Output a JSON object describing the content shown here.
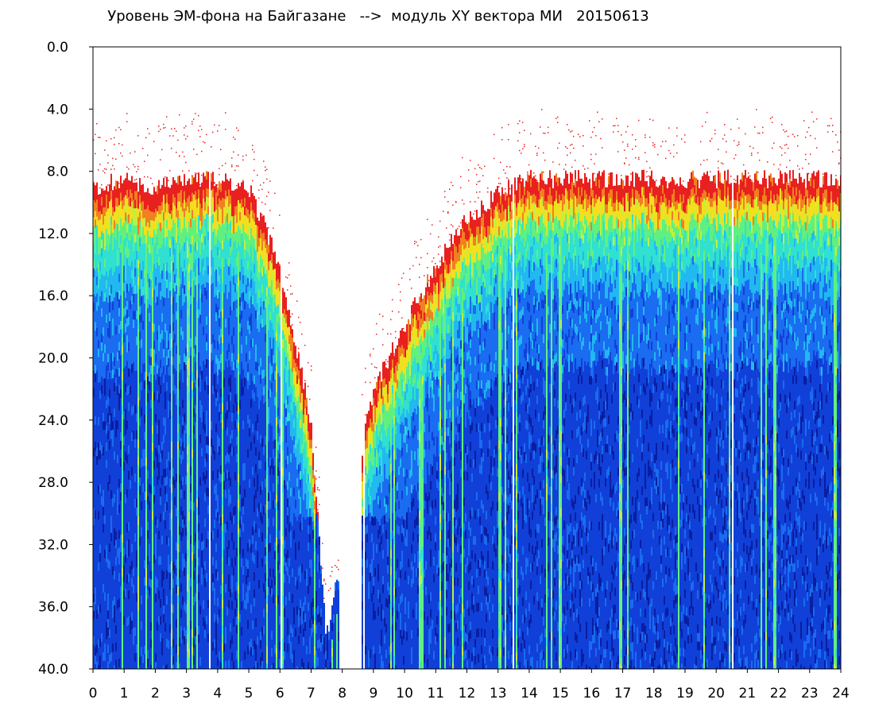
{
  "chart_data": {
    "type": "heatmap",
    "title": "Уровень ЭМ-фона на Байгазане   -->  модуль XY вектора МИ   20150613",
    "xlabel": "",
    "ylabel": "",
    "xlim": [
      0,
      24
    ],
    "ylim": [
      0,
      40
    ],
    "y_inverted": true,
    "x_ticks": [
      "0",
      "1",
      "2",
      "3",
      "4",
      "5",
      "6",
      "7",
      "8",
      "9",
      "10",
      "11",
      "12",
      "13",
      "14",
      "15",
      "16",
      "17",
      "18",
      "19",
      "20",
      "21",
      "22",
      "23",
      "24"
    ],
    "y_ticks": [
      "0.0",
      "4.0",
      "8.0",
      "12.0",
      "16.0",
      "20.0",
      "24.0",
      "28.0",
      "32.0",
      "36.0",
      "40.0"
    ],
    "colormap": [
      "#0a1ea0",
      "#1040d8",
      "#1a6cf0",
      "#22b8f0",
      "#30e0d0",
      "#60f080",
      "#c0f040",
      "#f0e020",
      "#f08020",
      "#e82020"
    ],
    "signal_onset_y_by_hour": [
      {
        "x": 0,
        "y": 9
      },
      {
        "x": 1,
        "y": 8.5
      },
      {
        "x": 2,
        "y": 9
      },
      {
        "x": 3,
        "y": 8.5
      },
      {
        "x": 4,
        "y": 8.5
      },
      {
        "x": 5,
        "y": 9
      },
      {
        "x": 6,
        "y": 14
      },
      {
        "x": 7,
        "y": 24
      },
      {
        "x": 7.5,
        "y": 38
      },
      {
        "x": 9,
        "y": 22
      },
      {
        "x": 10,
        "y": 18
      },
      {
        "x": 11,
        "y": 14
      },
      {
        "x": 12,
        "y": 11
      },
      {
        "x": 13,
        "y": 9.5
      },
      {
        "x": 14,
        "y": 8.5
      },
      {
        "x": 16,
        "y": 8.5
      },
      {
        "x": 18,
        "y": 8.5
      },
      {
        "x": 20,
        "y": 8.5
      },
      {
        "x": 22,
        "y": 8.5
      },
      {
        "x": 24,
        "y": 8.5
      }
    ],
    "gaps_hours": [
      [
        7.9,
        8.6
      ]
    ]
  }
}
